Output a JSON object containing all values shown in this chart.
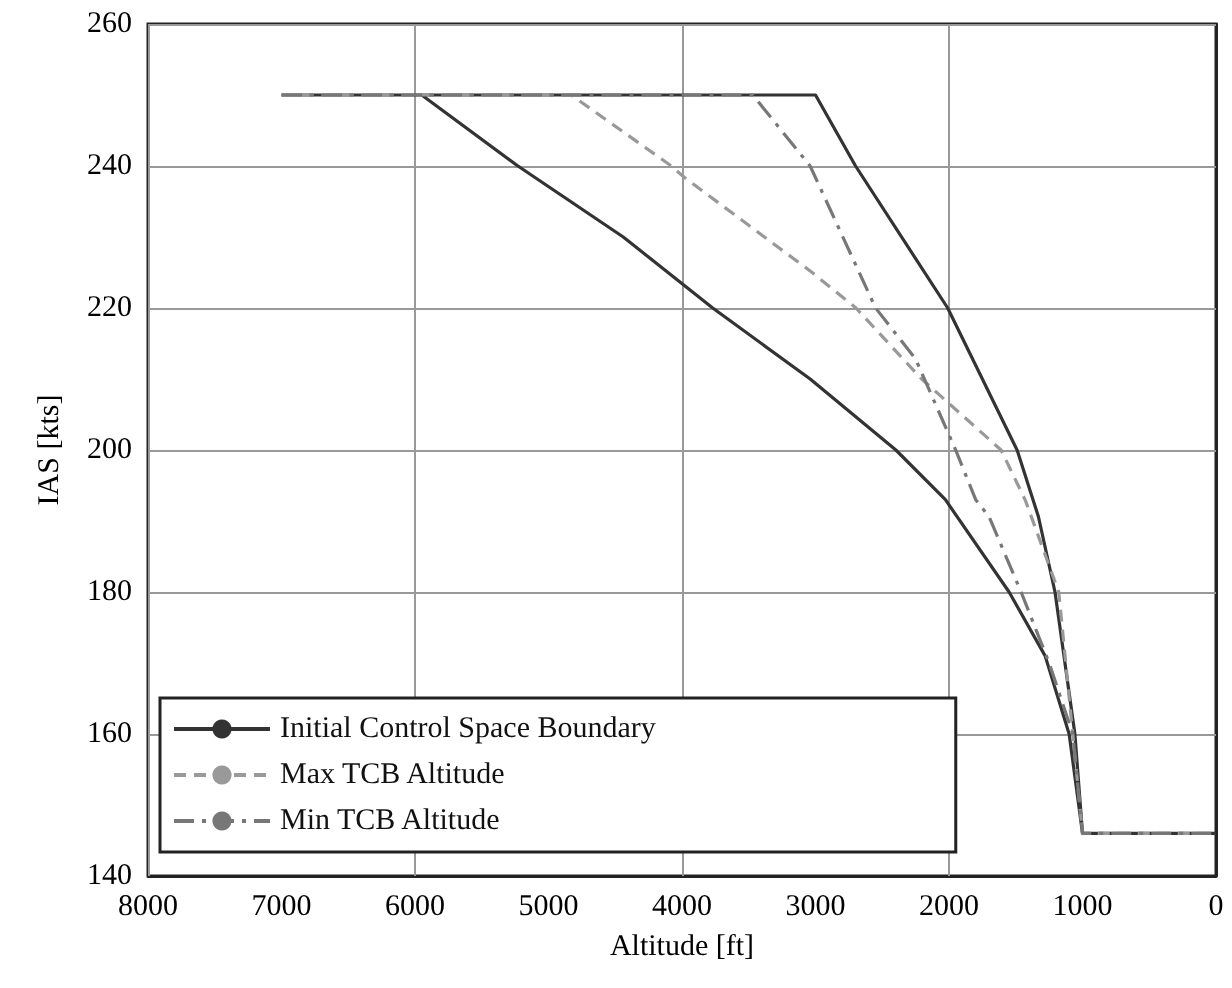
{
  "chart_data": {
    "type": "line",
    "xlabel": "Altitude [ft]",
    "ylabel": "IAS [kts]",
    "xlim": [
      8000,
      0
    ],
    "xticks": [
      8000,
      7000,
      6000,
      5000,
      4000,
      3000,
      2000,
      1000,
      0
    ],
    "ylim": [
      140,
      260
    ],
    "yticks": [
      140,
      160,
      180,
      200,
      220,
      240,
      260
    ],
    "grid": true,
    "legend": "bottom left",
    "marker": "none",
    "series": [
      {
        "name": "Initial Control Space Boundary",
        "color": "#333333",
        "line_style": "solid",
        "x": [
          7000,
          3000,
          2700,
          2010,
          1490,
          1330,
          1206,
          1057,
          1000,
          0,
          null,
          5950,
          5229,
          4440,
          3770,
          3040,
          2398,
          2027,
          1550,
          1280,
          1100,
          1000
        ],
        "values": [
          250,
          250,
          240,
          220,
          200,
          190.6,
          180,
          160,
          146,
          146,
          null,
          250,
          240,
          230,
          220,
          210,
          200,
          193,
          180,
          171,
          160,
          146
        ]
      },
      {
        "name": "Max TCB Altitude",
        "color": "#999999",
        "line_style": "dashed",
        "x": [
          7000,
          4830,
          4080,
          3990,
          3025,
          2697,
          2205,
          1610,
          1430,
          1178,
          1073,
          1000,
          0
        ],
        "values": [
          250,
          250,
          240,
          238.5,
          225,
          220,
          210,
          200,
          193,
          180,
          160,
          146,
          146
        ]
      },
      {
        "name": "Min TCB Altitude",
        "color": "#777777",
        "line_style": "dash-dot",
        "x": [
          7000,
          3470,
          3040,
          2550,
          2250,
          1950,
          1800,
          1700,
          1460,
          1250,
          1073,
          1000,
          0
        ],
        "values": [
          250,
          250,
          240,
          220,
          212.8,
          200,
          193,
          190.6,
          180,
          170,
          160,
          146,
          146
        ]
      }
    ]
  }
}
